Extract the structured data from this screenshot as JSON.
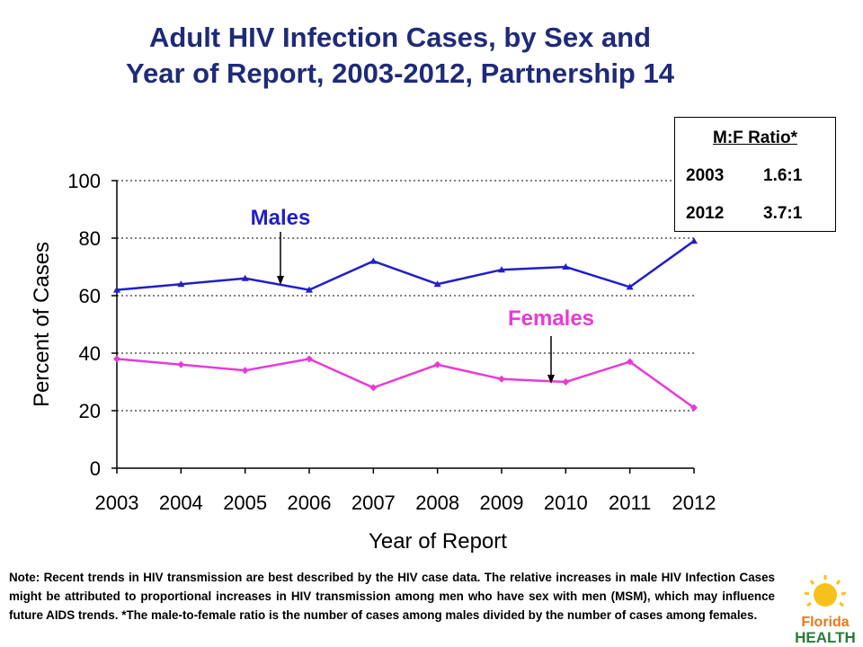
{
  "title": {
    "line1": "Adult HIV Infection Cases, by Sex and",
    "line2": "Year of Report, 2003-2012, Partnership 14"
  },
  "ratio_table": {
    "header": "M:F Ratio*",
    "rows": [
      {
        "year": "2003",
        "ratio": "1.6:1"
      },
      {
        "year": "2012",
        "ratio": "3.7:1"
      }
    ]
  },
  "note": "Note:  Recent trends in HIV transmission are best described by the HIV case data.  The relative increases in male HIV Infection Cases might be attributed to proportional increases in HIV transmission among men who have sex with men (MSM), which may influence future AIDS trends. *The male-to-female ratio is the number of cases among males divided by the number of cases among females.",
  "logo": {
    "line1": "Florida",
    "line2": "HEALTH"
  },
  "colors": {
    "males": "#1f1fc8",
    "females": "#e83ad8",
    "title": "#1f2a78"
  },
  "chart_data": {
    "type": "line",
    "title": "Adult HIV Infection Cases, by Sex and Year of Report, 2003-2012, Partnership 14",
    "xlabel": "Year of Report",
    "ylabel": "Percent of Cases",
    "categories": [
      "2003",
      "2004",
      "2005",
      "2006",
      "2007",
      "2008",
      "2009",
      "2010",
      "2011",
      "2012"
    ],
    "ylim": [
      0,
      100
    ],
    "yticks": [
      "0",
      "20",
      "40",
      "60",
      "80",
      "100"
    ],
    "grid": "horizontal dotted",
    "series": [
      {
        "name": "Males",
        "color": "#1f1fc8",
        "marker": "triangle",
        "values": [
          62,
          64,
          66,
          62,
          72,
          64,
          69,
          70,
          63,
          79
        ]
      },
      {
        "name": "Females",
        "color": "#e83ad8",
        "marker": "diamond",
        "values": [
          38,
          36,
          34,
          38,
          28,
          36,
          31,
          30,
          37,
          21
        ]
      }
    ]
  }
}
